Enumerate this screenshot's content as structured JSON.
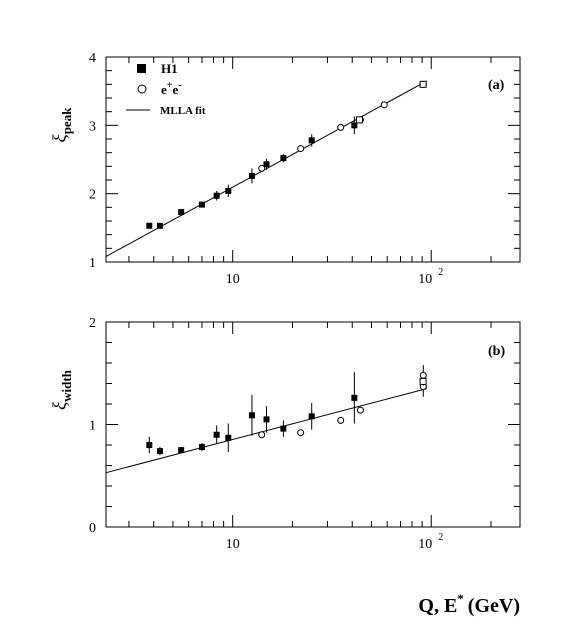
{
  "chart_data": {
    "type": "scatter",
    "xscale": "log",
    "xlim": [
      2.3,
      280
    ],
    "xlabel": "Q, E",
    "xlabel_sup": "*",
    "xlabel_unit": "(GeV)",
    "x_ticklabels": {
      "ten": "10",
      "hundred_base": "10",
      "hundred_exp": "2"
    },
    "panels": [
      {
        "id": "a",
        "panel_label": "(a)",
        "ylabel_main": "ξ",
        "ylabel_sub": "peak",
        "ylim": [
          1,
          4
        ],
        "y_ticks": [
          1,
          2,
          3,
          4
        ],
        "y_ticklabels": [
          "1",
          "2",
          "3",
          "4"
        ],
        "legend": {
          "placement": "top-left",
          "h1": "H1",
          "ee": "e",
          "ee_sup1": "+",
          "ee_mid": "e",
          "ee_sup2": "-",
          "fit": "MLLA fit"
        },
        "fit_line": {
          "x": [
            2.3,
            95
          ],
          "y": [
            1.08,
            3.65
          ]
        },
        "series": [
          {
            "name": "H1",
            "marker": "filled-square",
            "points": [
              {
                "x": 3.8,
                "y": 1.53,
                "err": 0.04
              },
              {
                "x": 4.3,
                "y": 1.53,
                "err": 0.04
              },
              {
                "x": 5.5,
                "y": 1.73,
                "err": 0.03
              },
              {
                "x": 7.0,
                "y": 1.84,
                "err": 0.04
              },
              {
                "x": 8.3,
                "y": 1.97,
                "err": 0.07
              },
              {
                "x": 9.5,
                "y": 2.04,
                "err": 0.09
              },
              {
                "x": 12.5,
                "y": 2.26,
                "err": 0.11
              },
              {
                "x": 14.8,
                "y": 2.43,
                "err": 0.08
              },
              {
                "x": 18.0,
                "y": 2.52,
                "err": 0.06
              },
              {
                "x": 25.0,
                "y": 2.78,
                "err": 0.09
              },
              {
                "x": 41.0,
                "y": 3.0,
                "err": 0.13
              }
            ]
          },
          {
            "name": "e+e-",
            "marker": "open-circle",
            "points": [
              {
                "x": 14.0,
                "y": 2.37,
                "err": 0.03
              },
              {
                "x": 22.0,
                "y": 2.66,
                "err": 0.03
              },
              {
                "x": 35.0,
                "y": 2.97,
                "err": 0.03
              },
              {
                "x": 44.0,
                "y": 3.08,
                "err": 0.03
              },
              {
                "x": 58.0,
                "y": 3.3,
                "err": 0.03
              },
              {
                "x": 91.2,
                "y": 3.6,
                "err": 0.03
              }
            ]
          },
          {
            "name": "e+e- square",
            "marker": "open-square",
            "points": [
              {
                "x": 43.5,
                "y": 3.08,
                "err": 0.0
              },
              {
                "x": 91.0,
                "y": 3.6,
                "err": 0.0
              }
            ]
          }
        ]
      },
      {
        "id": "b",
        "panel_label": "(b)",
        "ylabel_main": "ξ",
        "ylabel_sub": "width",
        "ylim": [
          0,
          2
        ],
        "y_ticks": [
          0,
          1,
          2
        ],
        "y_ticklabels": [
          "0",
          "1",
          "2"
        ],
        "fit_line": {
          "x": [
            2.3,
            95
          ],
          "y": [
            0.53,
            1.35
          ]
        },
        "series": [
          {
            "name": "H1",
            "marker": "filled-square",
            "points": [
              {
                "x": 3.8,
                "y": 0.8,
                "err": 0.08
              },
              {
                "x": 4.3,
                "y": 0.74,
                "err": 0.04
              },
              {
                "x": 5.5,
                "y": 0.75,
                "err": 0.03
              },
              {
                "x": 7.0,
                "y": 0.78,
                "err": 0.04
              },
              {
                "x": 8.3,
                "y": 0.9,
                "err": 0.09
              },
              {
                "x": 9.5,
                "y": 0.87,
                "err": 0.14
              },
              {
                "x": 12.5,
                "y": 1.09,
                "err": 0.2
              },
              {
                "x": 14.8,
                "y": 1.05,
                "err": 0.13
              },
              {
                "x": 18.0,
                "y": 0.96,
                "err": 0.08
              },
              {
                "x": 25.0,
                "y": 1.08,
                "err": 0.13
              },
              {
                "x": 41.0,
                "y": 1.26,
                "err": 0.25
              }
            ]
          },
          {
            "name": "e+e-",
            "marker": "open-circle",
            "points": [
              {
                "x": 14.0,
                "y": 0.9,
                "err": 0.02
              },
              {
                "x": 22.0,
                "y": 0.92,
                "err": 0.02
              },
              {
                "x": 35.0,
                "y": 1.04,
                "err": 0.02
              },
              {
                "x": 44.0,
                "y": 1.14,
                "err": 0.03
              },
              {
                "x": 91.2,
                "y": 1.37,
                "err": 0.1
              },
              {
                "x": 91.2,
                "y": 1.48,
                "err": 0.1
              }
            ]
          },
          {
            "name": "e+e- square",
            "marker": "open-square",
            "points": [
              {
                "x": 91.0,
                "y": 1.42,
                "err": 0.0
              }
            ]
          }
        ]
      }
    ]
  }
}
